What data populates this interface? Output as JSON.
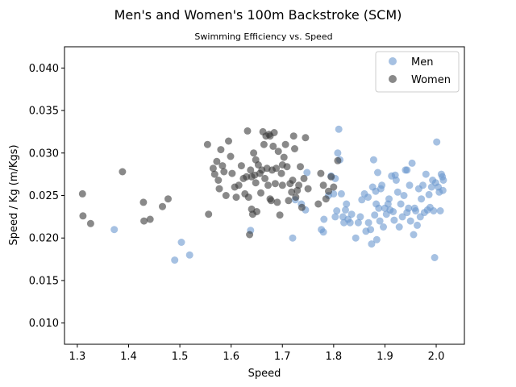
{
  "chart_data": {
    "type": "scatter",
    "title": "Men's and Women's 100m Backstroke (SCM)",
    "subtitle": "Swimming Efficiency vs. Speed",
    "xlabel": "Speed",
    "ylabel": "Speed / Kg (m/Kgs)",
    "xlim": [
      1.275,
      2.055
    ],
    "ylim": [
      0.0075,
      0.0425
    ],
    "xticks": [
      "1.3",
      "1.4",
      "1.5",
      "1.6",
      "1.7",
      "1.8",
      "1.9",
      "2.0"
    ],
    "yticks": [
      "0.010",
      "0.015",
      "0.020",
      "0.025",
      "0.030",
      "0.035",
      "0.040"
    ],
    "legend": "top-right",
    "grid": false,
    "series": [
      {
        "name": "Men",
        "color": "#6a97cf",
        "points": [
          [
            1.372,
            0.021
          ],
          [
            1.49,
            0.0174
          ],
          [
            1.503,
            0.0195
          ],
          [
            1.519,
            0.018
          ],
          [
            1.638,
            0.0209
          ],
          [
            1.72,
            0.02
          ],
          [
            1.725,
            0.0245
          ],
          [
            1.737,
            0.024
          ],
          [
            1.745,
            0.0233
          ],
          [
            1.748,
            0.0277
          ],
          [
            1.776,
            0.021
          ],
          [
            1.78,
            0.0207
          ],
          [
            1.781,
            0.0222
          ],
          [
            1.79,
            0.025
          ],
          [
            1.795,
            0.0273
          ],
          [
            1.8,
            0.0252
          ],
          [
            1.803,
            0.0225
          ],
          [
            1.806,
            0.0232
          ],
          [
            1.808,
            0.03
          ],
          [
            1.81,
            0.0328
          ],
          [
            1.812,
            0.0292
          ],
          [
            1.815,
            0.0252
          ],
          [
            1.818,
            0.0225
          ],
          [
            1.82,
            0.0218
          ],
          [
            1.823,
            0.0233
          ],
          [
            1.825,
            0.024
          ],
          [
            1.828,
            0.0222
          ],
          [
            1.832,
            0.0218
          ],
          [
            1.835,
            0.0228
          ],
          [
            1.843,
            0.02
          ],
          [
            1.848,
            0.0218
          ],
          [
            1.852,
            0.0225
          ],
          [
            1.855,
            0.0245
          ],
          [
            1.86,
            0.0252
          ],
          [
            1.863,
            0.0208
          ],
          [
            1.867,
            0.0248
          ],
          [
            1.872,
            0.021
          ],
          [
            1.874,
            0.0193
          ],
          [
            1.876,
            0.026
          ],
          [
            1.878,
            0.0292
          ],
          [
            1.88,
            0.0227
          ],
          [
            1.882,
            0.0255
          ],
          [
            1.884,
            0.0198
          ],
          [
            1.886,
            0.0277
          ],
          [
            1.888,
            0.0235
          ],
          [
            1.89,
            0.022
          ],
          [
            1.892,
            0.0258
          ],
          [
            1.894,
            0.0262
          ],
          [
            1.897,
            0.0213
          ],
          [
            1.9,
            0.0235
          ],
          [
            1.903,
            0.0228
          ],
          [
            1.906,
            0.024
          ],
          [
            1.908,
            0.0246
          ],
          [
            1.91,
            0.0233
          ],
          [
            1.913,
            0.0273
          ],
          [
            1.916,
            0.0231
          ],
          [
            1.918,
            0.0221
          ],
          [
            1.92,
            0.0274
          ],
          [
            1.922,
            0.0268
          ],
          [
            1.925,
            0.0254
          ],
          [
            1.928,
            0.0213
          ],
          [
            1.931,
            0.024
          ],
          [
            1.934,
            0.0225
          ],
          [
            1.937,
            0.025
          ],
          [
            1.94,
            0.028
          ],
          [
            1.943,
            0.023
          ],
          [
            1.946,
            0.0235
          ],
          [
            1.948,
            0.0262
          ],
          [
            1.95,
            0.022
          ],
          [
            1.953,
            0.0288
          ],
          [
            1.956,
            0.0204
          ],
          [
            1.958,
            0.0235
          ],
          [
            1.96,
            0.0232
          ],
          [
            1.963,
            0.0215
          ],
          [
            1.966,
            0.0258
          ],
          [
            1.969,
            0.0225
          ],
          [
            1.971,
            0.0246
          ],
          [
            1.974,
            0.0262
          ],
          [
            1.977,
            0.023
          ],
          [
            1.98,
            0.0275
          ],
          [
            1.983,
            0.0233
          ],
          [
            1.986,
            0.0251
          ],
          [
            1.988,
            0.0236
          ],
          [
            1.991,
            0.026
          ],
          [
            1.993,
            0.0268
          ],
          [
            1.995,
            0.0232
          ],
          [
            1.997,
            0.0177
          ],
          [
            1.999,
            0.0265
          ],
          [
            2.001,
            0.0313
          ],
          [
            2.004,
            0.026
          ],
          [
            2.006,
            0.0254
          ],
          [
            2.008,
            0.0232
          ],
          [
            2.01,
            0.0275
          ],
          [
            2.012,
            0.0272
          ],
          [
            2.013,
            0.0256
          ],
          [
            2.014,
            0.0268
          ],
          [
            1.803,
            0.027
          ],
          [
            1.883,
            0.024
          ],
          [
            1.943,
            0.028
          ],
          [
            1.868,
            0.0218
          ]
        ]
      },
      {
        "name": "Women",
        "color": "#3a3a3a",
        "points": [
          [
            1.31,
            0.0252
          ],
          [
            1.311,
            0.0226
          ],
          [
            1.326,
            0.0217
          ],
          [
            1.388,
            0.0278
          ],
          [
            1.429,
            0.0242
          ],
          [
            1.43,
            0.022
          ],
          [
            1.442,
            0.0222
          ],
          [
            1.466,
            0.0237
          ],
          [
            1.477,
            0.0246
          ],
          [
            1.554,
            0.031
          ],
          [
            1.556,
            0.0228
          ],
          [
            1.565,
            0.0282
          ],
          [
            1.568,
            0.0275
          ],
          [
            1.572,
            0.029
          ],
          [
            1.575,
            0.0268
          ],
          [
            1.577,
            0.0258
          ],
          [
            1.58,
            0.0304
          ],
          [
            1.583,
            0.0285
          ],
          [
            1.586,
            0.0278
          ],
          [
            1.59,
            0.025
          ],
          [
            1.595,
            0.0314
          ],
          [
            1.599,
            0.0296
          ],
          [
            1.602,
            0.0276
          ],
          [
            1.607,
            0.026
          ],
          [
            1.61,
            0.0248
          ],
          [
            1.615,
            0.0262
          ],
          [
            1.62,
            0.0285
          ],
          [
            1.624,
            0.027
          ],
          [
            1.627,
            0.0252
          ],
          [
            1.63,
            0.0272
          ],
          [
            1.632,
            0.0326
          ],
          [
            1.634,
            0.0248
          ],
          [
            1.636,
            0.0204
          ],
          [
            1.638,
            0.028
          ],
          [
            1.64,
            0.0234
          ],
          [
            1.642,
            0.0228
          ],
          [
            1.644,
            0.03
          ],
          [
            1.646,
            0.0274
          ],
          [
            1.648,
            0.0265
          ],
          [
            1.65,
            0.0231
          ],
          [
            1.653,
            0.0286
          ],
          [
            1.656,
            0.0276
          ],
          [
            1.658,
            0.0253
          ],
          [
            1.66,
            0.028
          ],
          [
            1.662,
            0.0325
          ],
          [
            1.664,
            0.031
          ],
          [
            1.666,
            0.027
          ],
          [
            1.668,
            0.032
          ],
          [
            1.67,
            0.0282
          ],
          [
            1.672,
            0.0262
          ],
          [
            1.674,
            0.0322
          ],
          [
            1.676,
            0.0246
          ],
          [
            1.678,
            0.0244
          ],
          [
            1.68,
            0.028
          ],
          [
            1.682,
            0.0308
          ],
          [
            1.684,
            0.0324
          ],
          [
            1.686,
            0.0264
          ],
          [
            1.688,
            0.0282
          ],
          [
            1.69,
            0.0242
          ],
          [
            1.692,
            0.0302
          ],
          [
            1.695,
            0.0227
          ],
          [
            1.698,
            0.0276
          ],
          [
            1.7,
            0.0262
          ],
          [
            1.703,
            0.0295
          ],
          [
            1.706,
            0.031
          ],
          [
            1.709,
            0.0284
          ],
          [
            1.712,
            0.0244
          ],
          [
            1.715,
            0.0264
          ],
          [
            1.718,
            0.0254
          ],
          [
            1.72,
            0.0268
          ],
          [
            1.722,
            0.032
          ],
          [
            1.724,
            0.0305
          ],
          [
            1.726,
            0.0248
          ],
          [
            1.729,
            0.0256
          ],
          [
            1.732,
            0.0262
          ],
          [
            1.735,
            0.0284
          ],
          [
            1.738,
            0.0236
          ],
          [
            1.742,
            0.027
          ],
          [
            1.745,
            0.0318
          ],
          [
            1.75,
            0.0258
          ],
          [
            1.77,
            0.024
          ],
          [
            1.775,
            0.0276
          ],
          [
            1.78,
            0.0262
          ],
          [
            1.785,
            0.0246
          ],
          [
            1.79,
            0.0255
          ],
          [
            1.795,
            0.0272
          ],
          [
            1.8,
            0.026
          ],
          [
            1.808,
            0.0291
          ],
          [
            1.648,
            0.0292
          ],
          [
            1.676,
            0.032
          ],
          [
            1.7,
            0.0286
          ],
          [
            1.64,
            0.0272
          ]
        ]
      }
    ]
  }
}
